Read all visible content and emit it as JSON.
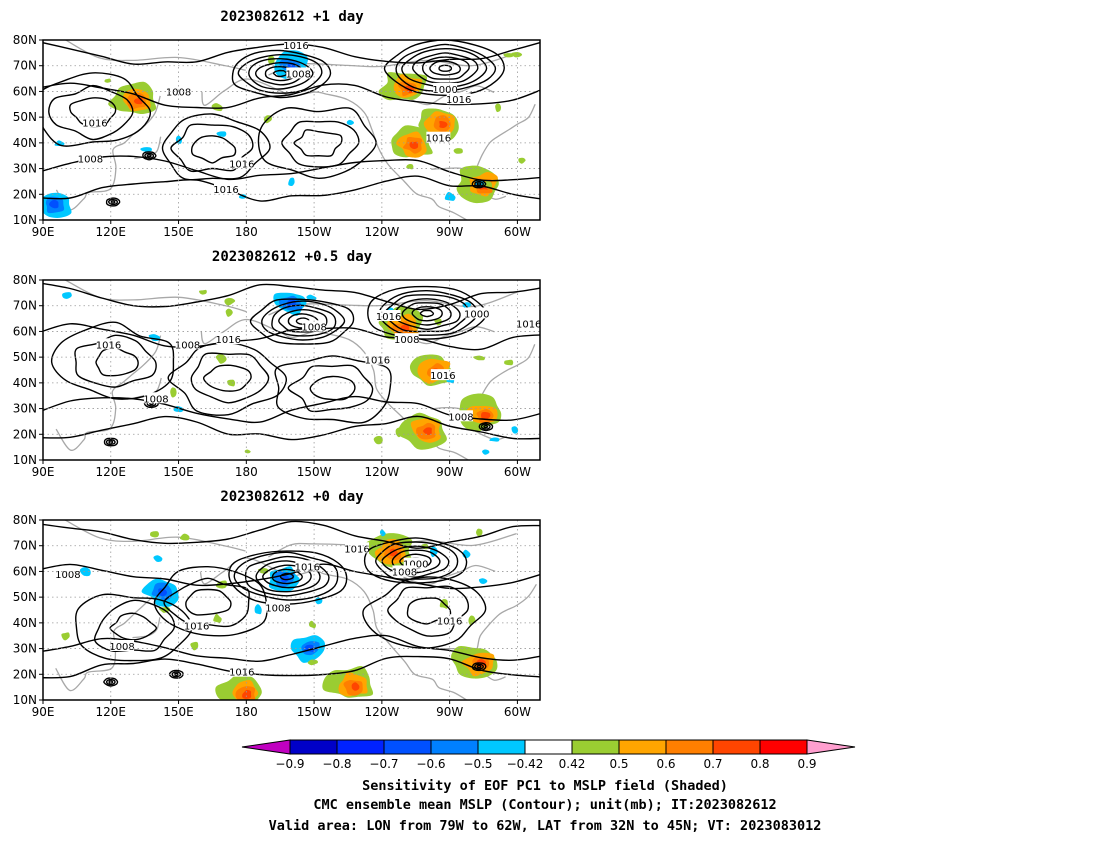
{
  "chart_data": [
    {
      "type": "contour",
      "title": "2023082612  +1 day",
      "lon_ticks": [
        "90E",
        "120E",
        "150E",
        "180",
        "150W",
        "120W",
        "90W",
        "60W"
      ],
      "lat_ticks": [
        "10N",
        "20N",
        "30N",
        "40N",
        "50N",
        "60N",
        "70N",
        "80N"
      ],
      "lon_range": [
        90,
        310
      ],
      "lat_range": [
        10,
        80
      ],
      "lows": [
        {
          "lon": 268,
          "lat": 69
        },
        {
          "lon": 195,
          "lat": 67
        },
        {
          "lon": 283,
          "lat": 24
        },
        {
          "lon": 121,
          "lat": 17
        },
        {
          "lon": 137,
          "lat": 35
        }
      ],
      "highs": [
        {
          "lon": 165,
          "lat": 38
        },
        {
          "lon": 212,
          "lat": 40
        },
        {
          "lon": 112,
          "lat": 52
        }
      ],
      "shaded_positive": [
        {
          "lon": 250,
          "lat": 62
        },
        {
          "lon": 252,
          "lat": 40
        },
        {
          "lon": 265,
          "lat": 48
        },
        {
          "lon": 283,
          "lat": 24
        },
        {
          "lon": 130,
          "lat": 57
        }
      ],
      "shaded_negative": [
        {
          "lon": 95,
          "lat": 16
        },
        {
          "lon": 200,
          "lat": 70
        }
      ],
      "contour_labels": [
        {
          "text": "1016",
          "lon": 202,
          "lat": 78
        },
        {
          "text": "1008",
          "lon": 203,
          "lat": 67
        },
        {
          "text": "1008",
          "lon": 150,
          "lat": 60
        },
        {
          "text": "1016",
          "lon": 113,
          "lat": 48
        },
        {
          "text": "1008",
          "lon": 111,
          "lat": 34
        },
        {
          "text": "1016",
          "lon": 178,
          "lat": 32
        },
        {
          "text": "1016",
          "lon": 171,
          "lat": 22
        },
        {
          "text": "1000",
          "lon": 268,
          "lat": 61
        },
        {
          "text": "1016",
          "lon": 274,
          "lat": 57
        },
        {
          "text": "1016",
          "lon": 265,
          "lat": 42
        }
      ]
    },
    {
      "type": "contour",
      "title": "2023082612  +0.5 day",
      "lon_ticks": [
        "90E",
        "120E",
        "150E",
        "180",
        "150W",
        "120W",
        "90W",
        "60W"
      ],
      "lat_ticks": [
        "10N",
        "20N",
        "30N",
        "40N",
        "50N",
        "60N",
        "70N",
        "80N"
      ],
      "lon_range": [
        90,
        310
      ],
      "lat_range": [
        10,
        80
      ],
      "lows": [
        {
          "lon": 260,
          "lat": 67
        },
        {
          "lon": 205,
          "lat": 64
        },
        {
          "lon": 286,
          "lat": 23
        },
        {
          "lon": 120,
          "lat": 17
        },
        {
          "lon": 138,
          "lat": 32
        }
      ],
      "highs": [
        {
          "lon": 172,
          "lat": 42
        },
        {
          "lon": 218,
          "lat": 38
        },
        {
          "lon": 122,
          "lat": 48
        }
      ],
      "shaded_positive": [
        {
          "lon": 248,
          "lat": 62
        },
        {
          "lon": 262,
          "lat": 45
        },
        {
          "lon": 284,
          "lat": 28
        },
        {
          "lon": 258,
          "lat": 22
        }
      ],
      "shaded_negative": [
        {
          "lon": 200,
          "lat": 71
        }
      ],
      "contour_labels": [
        {
          "text": "1008",
          "lon": 210,
          "lat": 62
        },
        {
          "text": "1016",
          "lon": 243,
          "lat": 66
        },
        {
          "text": "1016",
          "lon": 119,
          "lat": 55
        },
        {
          "text": "1008",
          "lon": 154,
          "lat": 55
        },
        {
          "text": "1016",
          "lon": 172,
          "lat": 57
        },
        {
          "text": "1016",
          "lon": 238,
          "lat": 49
        },
        {
          "text": "1008",
          "lon": 251,
          "lat": 57
        },
        {
          "text": "1000",
          "lon": 282,
          "lat": 67
        },
        {
          "text": "1016",
          "lon": 305,
          "lat": 63
        },
        {
          "text": "1016",
          "lon": 267,
          "lat": 43
        },
        {
          "text": "1008",
          "lon": 275,
          "lat": 27
        },
        {
          "text": "1008",
          "lon": 140,
          "lat": 34
        }
      ]
    },
    {
      "type": "contour",
      "title": "2023082612  +0 day",
      "lon_ticks": [
        "90E",
        "120E",
        "150E",
        "180",
        "150W",
        "120W",
        "90W",
        "60W"
      ],
      "lat_ticks": [
        "10N",
        "20N",
        "30N",
        "40N",
        "50N",
        "60N",
        "70N",
        "80N"
      ],
      "lon_range": [
        90,
        310
      ],
      "lat_range": [
        10,
        80
      ],
      "lows": [
        {
          "lon": 198,
          "lat": 58
        },
        {
          "lon": 255,
          "lat": 64
        },
        {
          "lon": 283,
          "lat": 23
        },
        {
          "lon": 120,
          "lat": 17
        },
        {
          "lon": 149,
          "lat": 20
        }
      ],
      "highs": [
        {
          "lon": 163,
          "lat": 48
        },
        {
          "lon": 260,
          "lat": 45
        },
        {
          "lon": 130,
          "lat": 38
        }
      ],
      "shaded_positive": [
        {
          "lon": 243,
          "lat": 68
        },
        {
          "lon": 282,
          "lat": 25
        },
        {
          "lon": 178,
          "lat": 13
        },
        {
          "lon": 226,
          "lat": 16
        }
      ],
      "shaded_negative": [
        {
          "lon": 197,
          "lat": 57
        },
        {
          "lon": 143,
          "lat": 52
        },
        {
          "lon": 208,
          "lat": 30
        }
      ],
      "contour_labels": [
        {
          "text": "1016",
          "lon": 229,
          "lat": 69
        },
        {
          "text": "1016",
          "lon": 207,
          "lat": 62
        },
        {
          "text": "1008",
          "lon": 194,
          "lat": 46
        },
        {
          "text": "1000",
          "lon": 255,
          "lat": 63
        },
        {
          "text": "1008",
          "lon": 250,
          "lat": 60
        },
        {
          "text": "1008",
          "lon": 101,
          "lat": 59
        },
        {
          "text": "1016",
          "lon": 158,
          "lat": 39
        },
        {
          "text": "1008",
          "lon": 125,
          "lat": 31
        },
        {
          "text": "1016",
          "lon": 178,
          "lat": 21
        },
        {
          "text": "1016",
          "lon": 270,
          "lat": 41
        }
      ]
    }
  ],
  "colorbar": {
    "ticks": [
      "−0.9",
      "−0.8",
      "−0.7",
      "−0.6",
      "−0.5",
      "−0.42",
      "0.42",
      "0.5",
      "0.6",
      "0.7",
      "0.8",
      "0.9"
    ],
    "colors": [
      "#c000c0",
      "#0000c8",
      "#0022ff",
      "#0050ff",
      "#0080ff",
      "#00c8ff",
      "#ffffff",
      "#9acd32",
      "#ffa500",
      "#ff7f00",
      "#ff4500",
      "#ff0000",
      "#ff9fcf"
    ]
  },
  "caption": {
    "line1": "Sensitivity of EOF PC1 to MSLP field (Shaded)",
    "line2": "CMC ensemble mean MSLP (Contour); unit(mb); IT:2023082612",
    "line3": "Valid area: LON from 79W to 62W, LAT from 32N to 45N; VT: 2023083012"
  }
}
